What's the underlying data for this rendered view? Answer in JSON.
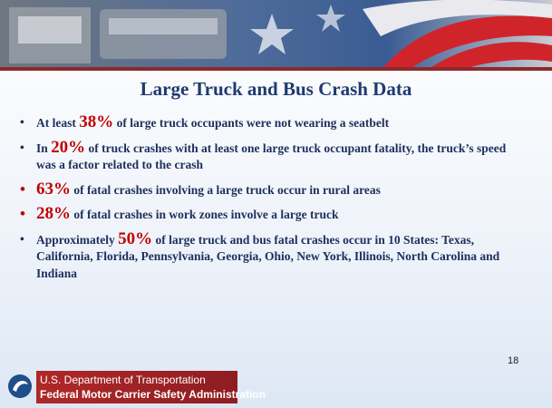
{
  "title": "Large Truck and Bus Crash Data",
  "bullets": [
    {
      "before": "At least ",
      "highlight": "38%",
      "after": " of large truck occupants were not wearing a seatbelt"
    },
    {
      "before": "In ",
      "highlight": "20%",
      "after": " of truck crashes with at least one large truck occupant fatality, the truck’s speed was a factor related to the crash"
    },
    {
      "highlight": "63%",
      "after": " of fatal crashes involving a large truck occur in rural areas"
    },
    {
      "highlight": "28%",
      "after": " of fatal crashes in work zones involve a large truck"
    },
    {
      "before": "Approximately ",
      "highlight": "50%",
      "after": " of large truck and bus fatal crashes occur in 10 States: Texas, California, Florida, Pennsylvania, Georgia, Ohio, New York, Illinois, North Carolina and Indiana"
    }
  ],
  "footer": {
    "department": "U.S. Department of Transportation",
    "agency": "Federal Motor Carrier Safety Administration"
  },
  "page_number": "18"
}
